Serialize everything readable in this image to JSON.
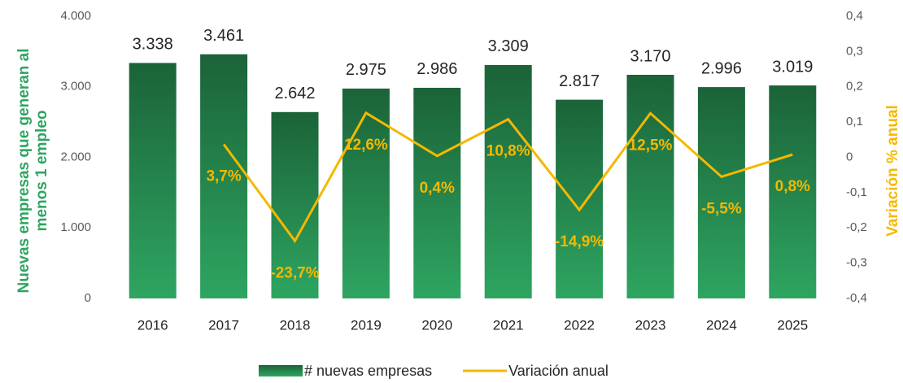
{
  "chart_data": {
    "type": "bar",
    "categories": [
      "2016",
      "2017",
      "2018",
      "2019",
      "2020",
      "2021",
      "2022",
      "2023",
      "2024",
      "2025"
    ],
    "series": [
      {
        "name": "# nuevas empresas",
        "color": "#217a45",
        "type": "bar",
        "values": [
          3338,
          3461,
          2642,
          2975,
          2986,
          3309,
          2817,
          3170,
          2996,
          3019
        ],
        "value_labels": [
          "3.338",
          "3.461",
          "2.642",
          "2.975",
          "2.986",
          "3.309",
          "2.817",
          "3.170",
          "2.996",
          "3.019"
        ]
      },
      {
        "name": "Variación anual",
        "color": "#f5b800",
        "type": "line",
        "axis": "y2",
        "values": [
          null,
          0.037,
          -0.237,
          0.126,
          0.004,
          0.108,
          -0.149,
          0.125,
          -0.055,
          0.008
        ],
        "value_labels": [
          null,
          "3,7%",
          "-23,7%",
          "12,6%",
          "0,4%",
          "10,8%",
          "-14,9%",
          "12,5%",
          "-5,5%",
          "0,8%"
        ]
      }
    ],
    "y_label": [
      "Nuevas empresas que generan al",
      "menos 1 empleo"
    ],
    "y2_label": "Variación % anual",
    "ylim": [
      0,
      4000
    ],
    "yticks": [
      0,
      {
        "value": 1000,
        "label": "1.000"
      },
      {
        "value": 2000,
        "label": "2.000"
      },
      {
        "value": 3000,
        "label": "3.000"
      },
      {
        "value": 4000,
        "label": "4.000"
      }
    ],
    "y2lim": [
      -0.4,
      0.4
    ],
    "y2ticks": [
      {
        "value": -0.4,
        "label": "-0,4"
      },
      {
        "value": -0.3,
        "label": "-0,3"
      },
      {
        "value": -0.2,
        "label": "-0,2"
      },
      {
        "value": -0.1,
        "label": "-0,1"
      },
      0,
      {
        "value": 0.1,
        "label": "0,1"
      },
      {
        "value": 0.2,
        "label": "0,2"
      },
      {
        "value": 0.3,
        "label": "0,3"
      },
      {
        "value": 0.4,
        "label": "0,4"
      }
    ],
    "legend": "bottom"
  }
}
